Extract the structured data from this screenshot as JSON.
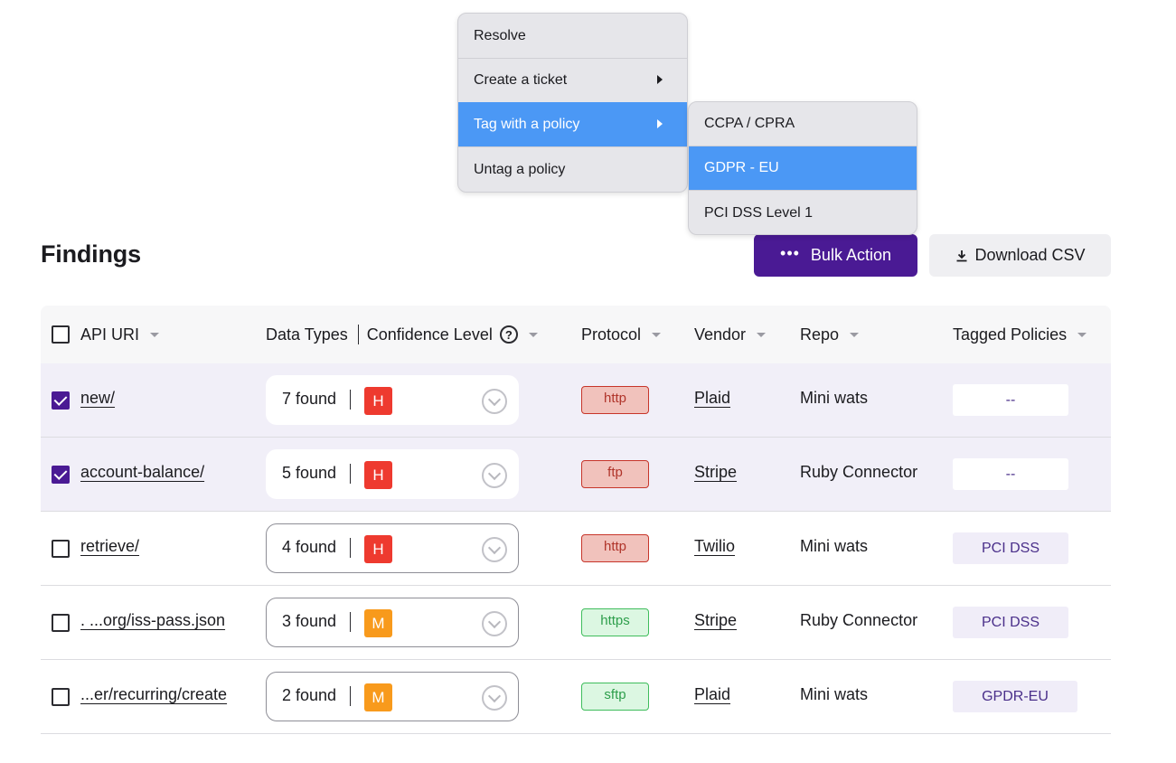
{
  "context_menu": {
    "items": [
      {
        "label": "Resolve"
      },
      {
        "label": "Create a ticket"
      },
      {
        "label": "Tag with a policy"
      },
      {
        "label": "Untag a policy"
      }
    ],
    "active_item": "Tag with a policy"
  },
  "submenu": {
    "items": [
      {
        "label": "CCPA / CPRA"
      },
      {
        "label": "GDPR - EU"
      },
      {
        "label": "PCI DSS Level 1"
      }
    ],
    "active_item": "GDPR - EU"
  },
  "page": {
    "title": "Findings",
    "bulk_action_label": "Bulk Action",
    "download_label": "Download CSV"
  },
  "table": {
    "headers": {
      "api_uri": "API URI",
      "data_types": "Data Types",
      "confidence": "Confidence Level",
      "help": "?",
      "protocol": "Protocol",
      "vendor": "Vendor",
      "repo": "Repo",
      "policies": "Tagged Policies"
    },
    "rows": [
      {
        "checked": true,
        "uri": "new/",
        "found": "7 found",
        "level": "H",
        "protocol": "http",
        "vendor": "Plaid",
        "repo": "Mini wats",
        "policy": "--"
      },
      {
        "checked": true,
        "uri": "account-balance/",
        "found": "5 found",
        "level": "H",
        "protocol": "ftp",
        "vendor": "Stripe",
        "repo": "Ruby Connector",
        "policy": "--"
      },
      {
        "checked": false,
        "uri": "retrieve/",
        "found": "4 found",
        "level": "H",
        "protocol": "http",
        "vendor": "Twilio",
        "repo": "Mini wats",
        "policy": "PCI DSS"
      },
      {
        "checked": false,
        "uri": ". ...org/iss-pass.json",
        "found": "3 found",
        "level": "M",
        "protocol": "https",
        "vendor": "Stripe",
        "repo": "Ruby Connector",
        "policy": "PCI DSS"
      },
      {
        "checked": false,
        "uri": "...er/recurring/create",
        "found": "2 found",
        "level": "M",
        "protocol": "sftp",
        "vendor": "Plaid",
        "repo": "Mini wats",
        "policy": "GPDR-EU"
      }
    ]
  },
  "colors": {
    "primary": "#4a1a94",
    "menu_highlight": "#4b98f5",
    "level_high": "#ee3a2f",
    "level_medium": "#f89a1c",
    "selected_row": "#f1eff8"
  }
}
